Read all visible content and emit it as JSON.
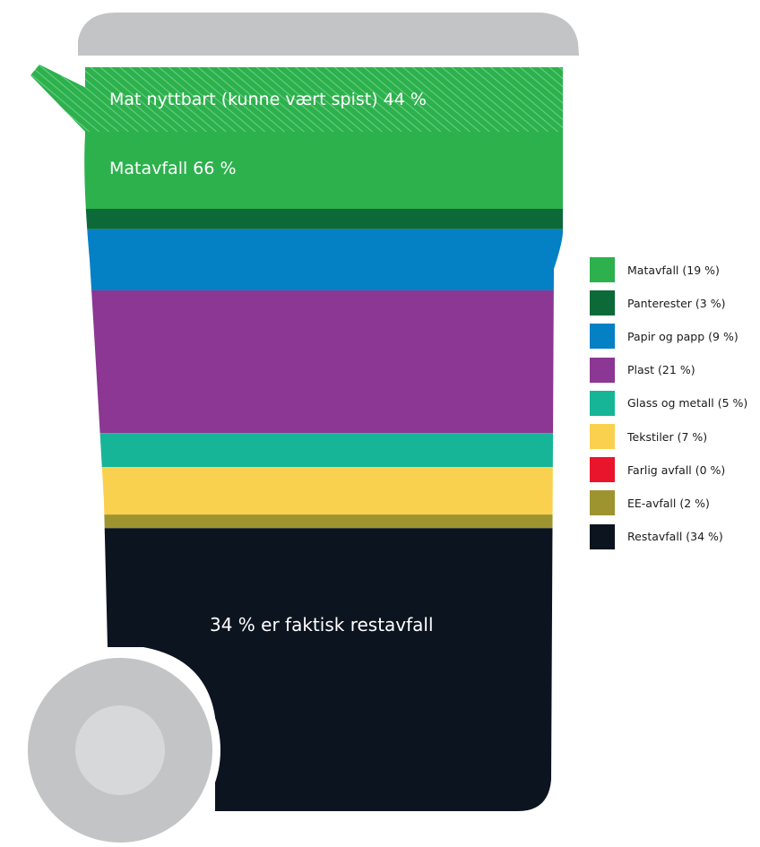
{
  "chart_data": {
    "type": "bar",
    "categories": [
      "Matavfall",
      "Panterester",
      "Papir og papp",
      "Plast",
      "Glass og metall",
      "Tekstiler",
      "Farlig avfall",
      "EE-avfall",
      "Restavfall"
    ],
    "values": [
      19,
      3,
      9,
      21,
      5,
      7,
      0,
      2,
      34
    ],
    "unit": "%",
    "colors": [
      "#2db14d",
      "#0b6a37",
      "#0480c4",
      "#8c3793",
      "#16b597",
      "#fad04f",
      "#e8152c",
      "#9d9430",
      "#0c1420"
    ],
    "legend": [
      "Matavfall (19 %)",
      "Panterester (3 %)",
      "Papir og papp (9 %)",
      "Plast (21 %)",
      "Glass og metall (5 %)",
      "Tekstiler (7 %)",
      "Farlig avfall (0 %)",
      "EE-avfall (2 %)",
      "Restavfall (34 %)"
    ],
    "legend_position": "right",
    "annotations": {
      "hatched": "Mat nyttbart (kunne vært spist) 44 %",
      "matavfall": "Matavfall 66 %",
      "restavfall": "34 % er faktisk restavfall"
    }
  },
  "bin_color": "#c3c4c6"
}
